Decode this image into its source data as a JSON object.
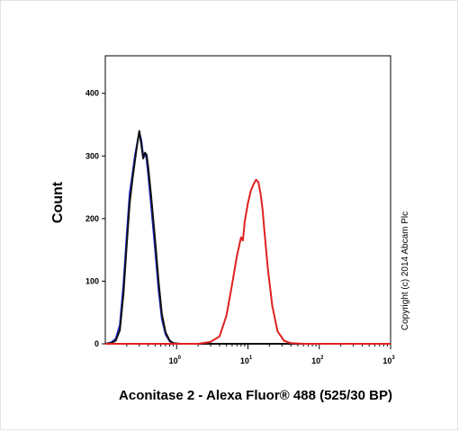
{
  "chart_data": {
    "type": "line",
    "xlabel": "Aconitase 2 - Alexa Fluor® 488 (525/30 BP)",
    "ylabel": "Count",
    "x_scale": "log",
    "xlim": [
      0.1,
      1000
    ],
    "ylim": [
      0,
      460
    ],
    "y_ticks": [
      "0",
      "100",
      "200",
      "300",
      "400"
    ],
    "x_ticks": [
      {
        "base": "10",
        "exp": "0",
        "value": 1
      },
      {
        "base": "10",
        "exp": "1",
        "value": 10
      },
      {
        "base": "10",
        "exp": "2",
        "value": 100
      },
      {
        "base": "10",
        "exp": "3",
        "value": 1000
      }
    ],
    "annotation": "Copyright (c) 2014 Abcam Plc",
    "series": [
      {
        "color": "#1f2bd6",
        "points": [
          [
            0.1,
            0
          ],
          [
            0.12,
            2
          ],
          [
            0.14,
            8
          ],
          [
            0.16,
            30
          ],
          [
            0.18,
            95
          ],
          [
            0.2,
            175
          ],
          [
            0.22,
            240
          ],
          [
            0.24,
            270
          ],
          [
            0.26,
            300
          ],
          [
            0.28,
            320
          ],
          [
            0.3,
            338
          ],
          [
            0.32,
            325
          ],
          [
            0.34,
            300
          ],
          [
            0.36,
            305
          ],
          [
            0.38,
            295
          ],
          [
            0.4,
            270
          ],
          [
            0.44,
            220
          ],
          [
            0.5,
            150
          ],
          [
            0.56,
            85
          ],
          [
            0.62,
            40
          ],
          [
            0.7,
            15
          ],
          [
            0.8,
            4
          ],
          [
            0.9,
            1
          ],
          [
            1.1,
            0
          ],
          [
            1000,
            0
          ]
        ]
      },
      {
        "color": "#111111",
        "points": [
          [
            0.1,
            0
          ],
          [
            0.12,
            1
          ],
          [
            0.14,
            5
          ],
          [
            0.16,
            22
          ],
          [
            0.18,
            80
          ],
          [
            0.2,
            160
          ],
          [
            0.22,
            225
          ],
          [
            0.24,
            262
          ],
          [
            0.26,
            292
          ],
          [
            0.28,
            318
          ],
          [
            0.3,
            340
          ],
          [
            0.32,
            318
          ],
          [
            0.34,
            296
          ],
          [
            0.36,
            305
          ],
          [
            0.38,
            302
          ],
          [
            0.4,
            282
          ],
          [
            0.44,
            235
          ],
          [
            0.5,
            165
          ],
          [
            0.56,
            98
          ],
          [
            0.62,
            48
          ],
          [
            0.7,
            18
          ],
          [
            0.8,
            5
          ],
          [
            0.9,
            1
          ],
          [
            1.1,
            0
          ],
          [
            1000,
            0
          ]
        ]
      },
      {
        "color": "#e02020",
        "points": [
          [
            0.1,
            0
          ],
          [
            2,
            0
          ],
          [
            3,
            3
          ],
          [
            4,
            12
          ],
          [
            5,
            45
          ],
          [
            6,
            95
          ],
          [
            7,
            140
          ],
          [
            8,
            170
          ],
          [
            8.5,
            165
          ],
          [
            9,
            195
          ],
          [
            10,
            225
          ],
          [
            11,
            245
          ],
          [
            12,
            255
          ],
          [
            13,
            262
          ],
          [
            14,
            258
          ],
          [
            15,
            240
          ],
          [
            16,
            215
          ],
          [
            17,
            180
          ],
          [
            19,
            120
          ],
          [
            22,
            60
          ],
          [
            26,
            20
          ],
          [
            32,
            5
          ],
          [
            40,
            1
          ],
          [
            60,
            0
          ],
          [
            1000,
            0
          ]
        ]
      }
    ]
  }
}
